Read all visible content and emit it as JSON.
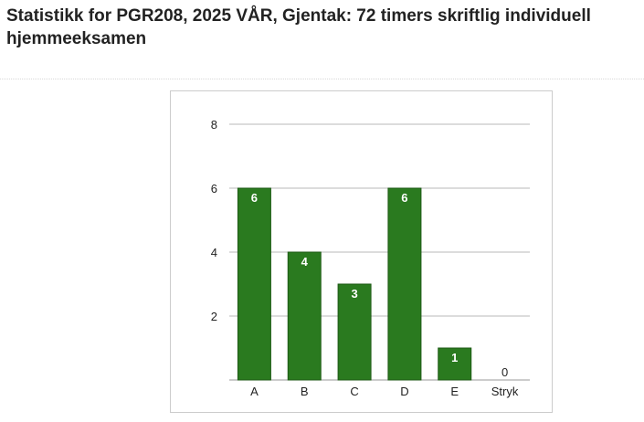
{
  "page": {
    "title": "Statistikk for PGR208, 2025 VÅR, Gjentak: 72 timers skriftlig individuell hjemmeeksamen"
  },
  "chart_data": {
    "type": "bar",
    "title": "",
    "xlabel": "",
    "ylabel": "",
    "categories": [
      "A",
      "B",
      "C",
      "D",
      "E",
      "Stryk"
    ],
    "values": [
      6,
      4,
      3,
      6,
      1,
      0
    ],
    "ylim": [
      0,
      8
    ],
    "yticks": [
      2,
      4,
      6,
      8
    ],
    "grid": true,
    "legend": "none",
    "bar_color": "#2a7a1f",
    "bar_border_color": "#1e5a16",
    "label_inside_color": "#ffffff",
    "label_outside_color": "#222222",
    "grid_color": "#b8b8b8"
  }
}
